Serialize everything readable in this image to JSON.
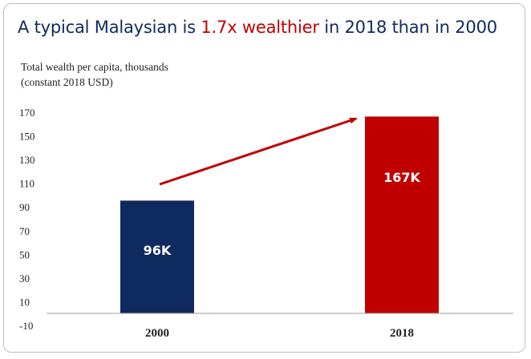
{
  "title": {
    "prefix": "A typical Malaysian is ",
    "highlight": "1.7x wealthier",
    "suffix": " in 2018 than in 2000"
  },
  "colors": {
    "title": "#0f2a5e",
    "highlight": "#c00000",
    "bar_2000": "#0f2a5e",
    "bar_2018": "#c00000",
    "arrow": "#c00000"
  },
  "chart_data": {
    "type": "bar",
    "ylabel_line1": "Total wealth per capita, thousands",
    "ylabel_line2": "(constant 2018 USD)",
    "categories": [
      "2000",
      "2018"
    ],
    "values": [
      96,
      167
    ],
    "data_labels": [
      "96K",
      "167K"
    ],
    "yticks": [
      -10,
      10,
      30,
      50,
      70,
      90,
      110,
      130,
      150,
      170
    ],
    "ylim": [
      -10,
      175
    ],
    "grid": false,
    "legend": "none",
    "annotation": "arrow from 2000 bar to 2018 bar"
  }
}
